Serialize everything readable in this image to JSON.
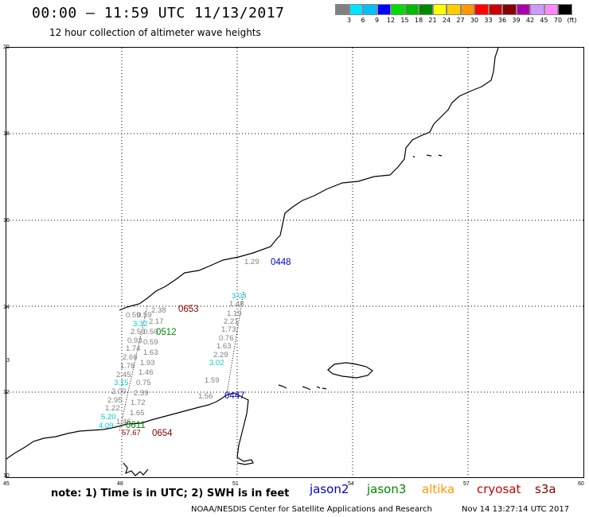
{
  "header": {
    "title": "00:00 – 11:59 UTC 11/13/2017",
    "subtitle": "12 hour collection of altimeter wave heights"
  },
  "legend": {
    "colors": [
      "#808080",
      "#00e5ff",
      "#00bfff",
      "#0000ff",
      "#00dd00",
      "#00bb00",
      "#008800",
      "#ffff00",
      "#ffcc00",
      "#ff9900",
      "#ff0000",
      "#cc0000",
      "#880000",
      "#aa00aa",
      "#cc99ff",
      "#ff88ff",
      "#000000"
    ],
    "labels": [
      "3",
      "6",
      "9",
      "12",
      "15",
      "18",
      "21",
      "24",
      "27",
      "30",
      "33",
      "36",
      "39",
      "42",
      "45",
      "70",
      "(ft)"
    ]
  },
  "map": {
    "lat_labels": [
      "20",
      "18",
      "16",
      "14",
      "12",
      "10"
    ],
    "lon_labels": [
      "45",
      "48",
      "51",
      "54",
      "57",
      "60"
    ],
    "stray_label": "3",
    "pass_labels": [
      {
        "text": "0448",
        "color": "#0000cc"
      },
      {
        "text": "0653",
        "color": "#880000"
      },
      {
        "text": "0512",
        "color": "#008800"
      },
      {
        "text": "0447",
        "color": "#0000cc"
      },
      {
        "text": "0611",
        "color": "#008800"
      },
      {
        "text": "0654",
        "color": "#880000"
      }
    ],
    "wave_values": [
      {
        "text": "1.29",
        "color": "#808080"
      },
      {
        "text": "3.03",
        "color": "#00cccc"
      },
      {
        "text": "1.48",
        "color": "#808080"
      },
      {
        "text": "1.19",
        "color": "#808080"
      },
      {
        "text": "2.21",
        "color": "#808080"
      },
      {
        "text": "1.73",
        "color": "#808080"
      },
      {
        "text": "0.76",
        "color": "#808080"
      },
      {
        "text": "1.63",
        "color": "#808080"
      },
      {
        "text": "2.29",
        "color": "#808080"
      },
      {
        "text": "3.02",
        "color": "#00cccc"
      },
      {
        "text": "1.59",
        "color": "#808080"
      },
      {
        "text": "1.56",
        "color": "#808080"
      },
      {
        "text": "2.38",
        "color": "#808080"
      },
      {
        "text": "0.59",
        "color": "#808080"
      },
      {
        "text": "0.59",
        "color": "#808080"
      },
      {
        "text": "3.32",
        "color": "#00cccc"
      },
      {
        "text": "2.17",
        "color": "#808080"
      },
      {
        "text": "2.50",
        "color": "#808080"
      },
      {
        "text": "0.50",
        "color": "#808080"
      },
      {
        "text": "0.93",
        "color": "#808080"
      },
      {
        "text": "0.59",
        "color": "#808080"
      },
      {
        "text": "1.74",
        "color": "#808080"
      },
      {
        "text": "1.63",
        "color": "#808080"
      },
      {
        "text": "2.66",
        "color": "#808080"
      },
      {
        "text": "1.93",
        "color": "#808080"
      },
      {
        "text": "1.78",
        "color": "#808080"
      },
      {
        "text": "2.45",
        "color": "#808080"
      },
      {
        "text": "1.46",
        "color": "#808080"
      },
      {
        "text": "3.15",
        "color": "#00cccc"
      },
      {
        "text": "0.75",
        "color": "#808080"
      },
      {
        "text": "2.00",
        "color": "#808080"
      },
      {
        "text": "2.39",
        "color": "#808080"
      },
      {
        "text": "2.95",
        "color": "#808080"
      },
      {
        "text": "1.72",
        "color": "#808080"
      },
      {
        "text": "1.22",
        "color": "#808080"
      },
      {
        "text": "1.65",
        "color": "#808080"
      },
      {
        "text": "5.20",
        "color": "#00cccc"
      },
      {
        "text": "4.09",
        "color": "#00cccc"
      },
      {
        "text": "1.46",
        "color": "#808080"
      },
      {
        "text": "57.67",
        "color": "#880000"
      }
    ]
  },
  "footer": {
    "note": "note: 1) Time is in UTC; 2) SWH is in feet",
    "satellites": [
      {
        "name": "jason2",
        "color": "#0000cc"
      },
      {
        "name": "jason3",
        "color": "#008800"
      },
      {
        "name": "altika",
        "color": "#ff9900"
      },
      {
        "name": "cryosat",
        "color": "#cc0000"
      },
      {
        "name": "s3a",
        "color": "#880000"
      }
    ],
    "credit": "NOAA/NESDIS Center for Satellite Applications and Research",
    "generated": "Nov 14 13:27:14 UTC 2017"
  }
}
